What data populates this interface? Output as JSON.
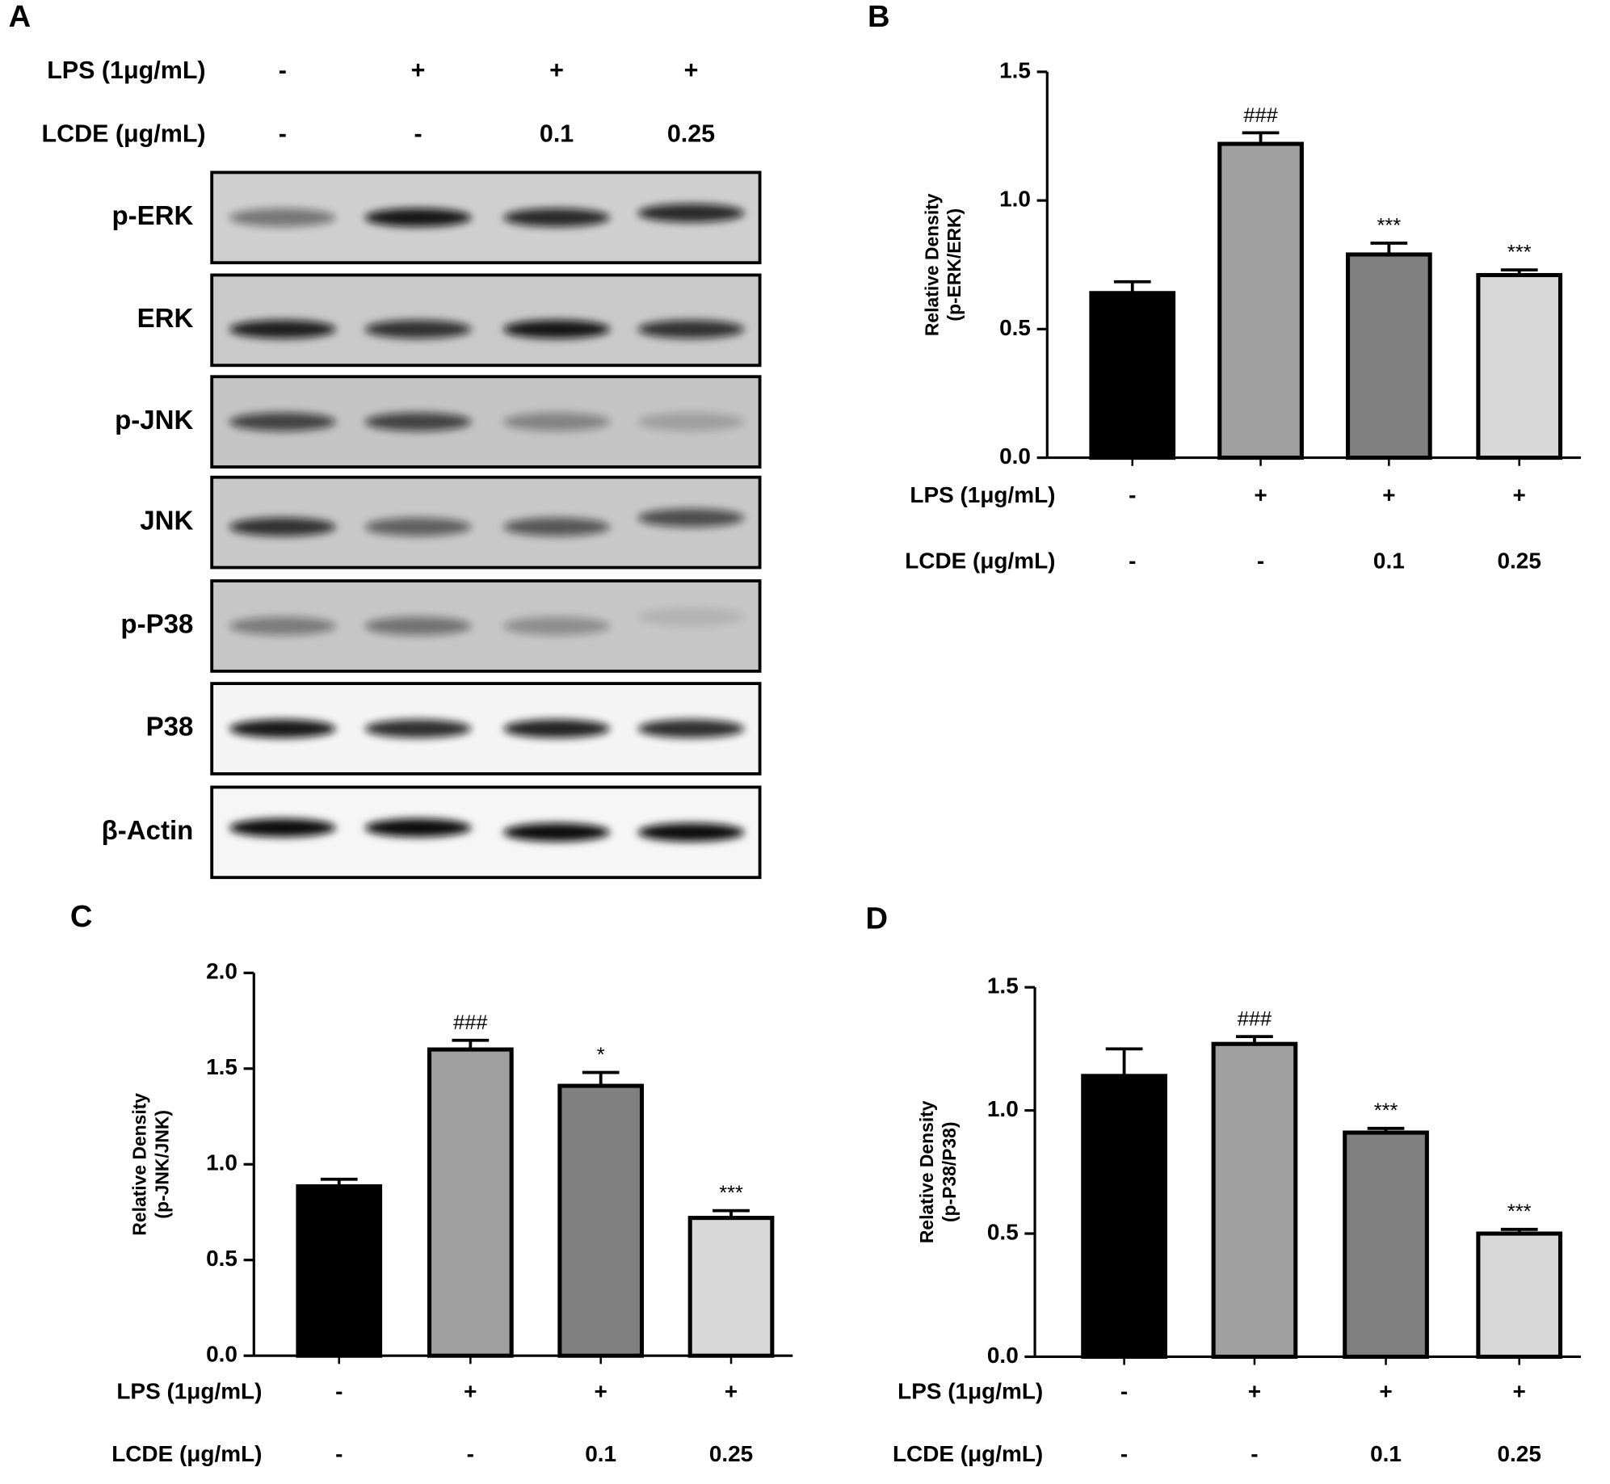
{
  "blot": {
    "panel_label": "A",
    "conditions": [
      {
        "label": "LPS (1μg/mL)",
        "values": [
          "-",
          "+",
          "+",
          "+"
        ]
      },
      {
        "label": "LCDE  (μg/mL)",
        "values": [
          "-",
          "-",
          "0.1",
          "0.25"
        ]
      }
    ],
    "rows": [
      "p-ERK",
      "ERK",
      "p-JNK",
      "JNK",
      "p-P38",
      "P38",
      "β-Actin"
    ]
  },
  "chart_data": [
    {
      "type": "bar",
      "panel_label": "B",
      "ylabel": [
        "Relative Density",
        "(p-ERK/ERK)"
      ],
      "conditions": [
        {
          "label": "LPS (1μg/mL)",
          "values": [
            "-",
            "+",
            "+",
            "+"
          ]
        },
        {
          "label": "LCDE  (μg/mL)",
          "values": [
            "-",
            "-",
            "0.1",
            "0.25"
          ]
        }
      ],
      "values": [
        0.64,
        1.22,
        0.79,
        0.71
      ],
      "errors": [
        0.044,
        0.043,
        0.044,
        0.02
      ],
      "significance": [
        null,
        "###",
        "***",
        "***"
      ],
      "colors": [
        "#000000",
        "#a0a0a0",
        "#808080",
        "#d8d8d8"
      ],
      "ylim": [
        0,
        1.5
      ],
      "yticks": [
        {
          "value": 0,
          "label": "0.0"
        },
        0.5,
        {
          "value": 1,
          "label": "1.0"
        },
        1.5
      ]
    },
    {
      "type": "bar",
      "panel_label": "C",
      "ylabel": [
        "Relative Density",
        "(p-JNK/JNK)"
      ],
      "conditions": [
        {
          "label": "LPS (1μg/mL)",
          "values": [
            "-",
            "+",
            "+",
            "+"
          ]
        },
        {
          "label": "LCDE  (μg/mL)",
          "values": [
            "-",
            "-",
            "0.1",
            "0.25"
          ]
        }
      ],
      "values": [
        0.885,
        1.6,
        1.41,
        0.72
      ],
      "errors": [
        0.037,
        0.048,
        0.07,
        0.038
      ],
      "significance": [
        null,
        "###",
        "*",
        "***"
      ],
      "colors": [
        "#000000",
        "#a0a0a0",
        "#808080",
        "#d8d8d8"
      ],
      "ylim": [
        0,
        2
      ],
      "yticks": [
        {
          "value": 0,
          "label": "0.0"
        },
        0.5,
        {
          "value": 1,
          "label": "1.0"
        },
        1.5,
        {
          "value": 2,
          "label": "2.0"
        }
      ]
    },
    {
      "type": "bar",
      "panel_label": "D",
      "ylabel": [
        "Relative Density",
        "(p-P38/P38)"
      ],
      "conditions": [
        {
          "label": "LPS (1μg/mL)",
          "values": [
            "-",
            "+",
            "+",
            "+"
          ]
        },
        {
          "label": "LCDE (μg/mL)",
          "values": [
            "-",
            "-",
            "0.1",
            "0.25"
          ]
        }
      ],
      "values": [
        1.14,
        1.27,
        0.91,
        0.5
      ],
      "errors": [
        0.11,
        0.03,
        0.017,
        0.017
      ],
      "significance": [
        null,
        "###",
        "***",
        "***"
      ],
      "colors": [
        "#000000",
        "#a0a0a0",
        "#808080",
        "#d8d8d8"
      ],
      "ylim": [
        0,
        1.5
      ],
      "yticks": [
        {
          "value": 0,
          "label": "0.0"
        },
        0.5,
        {
          "value": 1,
          "label": "1.0"
        },
        1.5
      ]
    }
  ]
}
